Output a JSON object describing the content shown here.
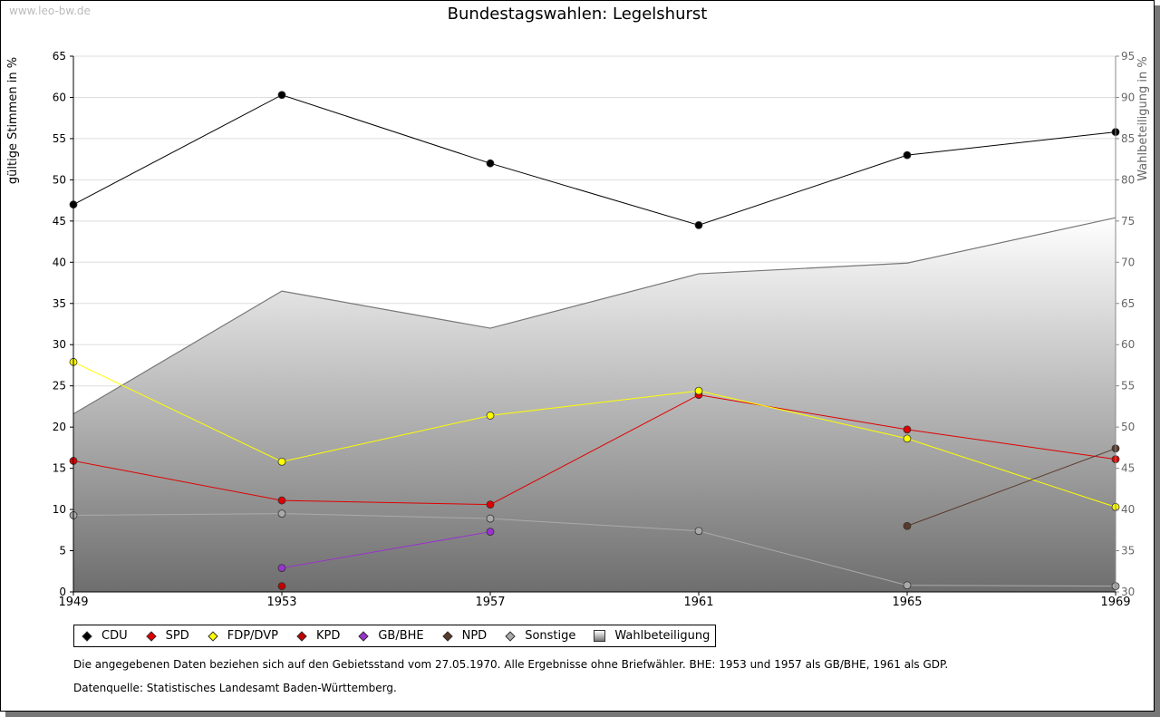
{
  "watermark": "www.leo-bw.de",
  "chart_data": {
    "type": "line",
    "title": "Bundestagswahlen: Legelshurst",
    "ylabel": "gültige Stimmen in %",
    "y2label": "Wahlbeteiligung in %",
    "x": [
      1949,
      1953,
      1957,
      1961,
      1965,
      1969
    ],
    "ylim": [
      0,
      65
    ],
    "y2lim": [
      30,
      95
    ],
    "yticks": [
      0,
      5,
      10,
      15,
      20,
      25,
      30,
      35,
      40,
      45,
      50,
      55,
      60,
      65
    ],
    "y2ticks": [
      30,
      35,
      40,
      45,
      50,
      55,
      60,
      65,
      70,
      75,
      80,
      85,
      90,
      95
    ],
    "grid": true,
    "legend_position": "bottom",
    "series": [
      {
        "name": "CDU",
        "color": "#000000",
        "values": [
          47.0,
          60.3,
          52.0,
          44.5,
          53.0,
          55.8
        ]
      },
      {
        "name": "SPD",
        "color": "#e00000",
        "values": [
          15.9,
          11.1,
          10.6,
          23.9,
          19.7,
          16.1
        ]
      },
      {
        "name": "FDP/DVP",
        "color": "#ffff00",
        "values": [
          27.9,
          15.8,
          21.4,
          24.4,
          18.6,
          10.3
        ]
      },
      {
        "name": "KPD",
        "color": "#c00000",
        "values": [
          null,
          0.7,
          null,
          null,
          null,
          null
        ]
      },
      {
        "name": "GB/BHE",
        "color": "#9933cc",
        "values": [
          null,
          2.9,
          7.3,
          null,
          null,
          null
        ]
      },
      {
        "name": "NPD",
        "color": "#5a3a2a",
        "values": [
          null,
          null,
          null,
          null,
          8.0,
          17.4
        ]
      },
      {
        "name": "Sonstige",
        "color": "#aaaaaa",
        "values": [
          9.3,
          9.5,
          8.9,
          7.4,
          0.8,
          0.7
        ]
      },
      {
        "name": "Wahlbeteiligung",
        "color": "#777777",
        "axis": "right",
        "type": "area",
        "values": [
          51.6,
          66.5,
          62.0,
          68.6,
          69.9,
          75.4
        ]
      }
    ]
  },
  "notes": [
    "Die angegebenen Daten beziehen sich auf den Gebietsstand vom 27.05.1970. Alle Ergebnisse ohne Briefwähler. BHE: 1953 und 1957 als GB/BHE, 1961 als GDP.",
    "Datenquelle: Statistisches Landesamt Baden-Württemberg."
  ]
}
